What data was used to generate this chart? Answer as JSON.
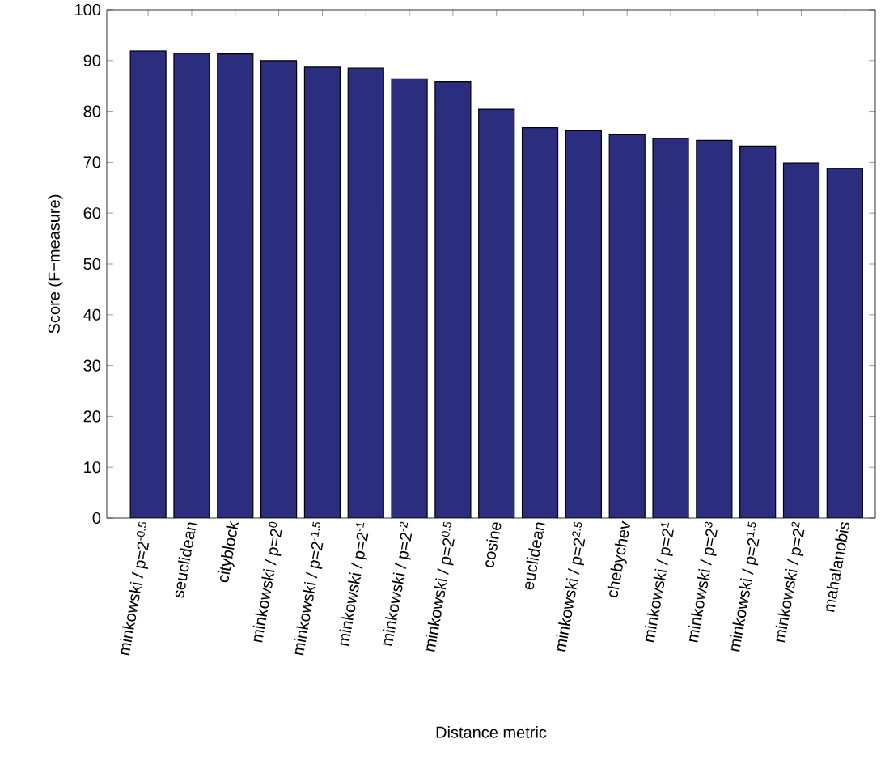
{
  "chart_data": {
    "type": "bar",
    "xlabel": "Distance metric",
    "ylabel": "Score (F−measure)",
    "categories": [
      "minkowski / p=2$^{-0.5}$",
      "seuclidean",
      "cityblock",
      "minkowski / p=2$^{0}$",
      "minkowski / p=2$^{-1.5}$",
      "minkowski / p=2$^{-1}$",
      "minkowski / p=2$^{-2}$",
      "minkowski / p=2$^{0.5}$",
      "cosine",
      "euclidean",
      "minkowski / p=2$^{2.5}$",
      "chebychev",
      "minkowski / p=2$^{1}$",
      "minkowski / p=2$^{3}$",
      "minkowski / p=2$^{1.5}$",
      "minkowski / p=2$^{2}$",
      "mahalanobis"
    ],
    "values": [
      91.9,
      91.4,
      91.3,
      90.0,
      88.7,
      88.5,
      86.4,
      85.9,
      80.4,
      76.8,
      76.2,
      75.4,
      74.7,
      74.3,
      73.2,
      69.9,
      68.8
    ],
    "color": "#2b2d7e",
    "ylim": [
      0,
      100
    ],
    "yticks": [
      0,
      10,
      20,
      30,
      40,
      50,
      60,
      70,
      80,
      90,
      100
    ],
    "grid": false
  }
}
